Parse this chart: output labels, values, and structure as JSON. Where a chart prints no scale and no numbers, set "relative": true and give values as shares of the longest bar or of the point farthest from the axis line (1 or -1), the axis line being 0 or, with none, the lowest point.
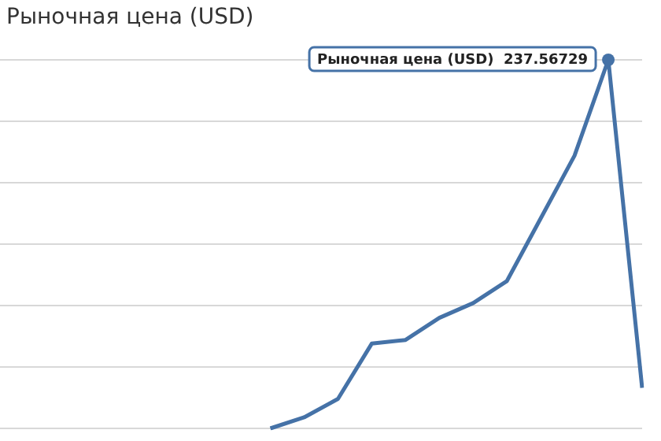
{
  "chart_data": {
    "type": "line",
    "title": "Рыночная цена (USD)",
    "relative": true,
    "grid": "y",
    "legend": false,
    "marker": "none",
    "categories": [
      null,
      null,
      null,
      null,
      null,
      null,
      null,
      null,
      null,
      null,
      null,
      null,
      null,
      null,
      null,
      null,
      null,
      null,
      null,
      null
    ],
    "series": [
      {
        "color": "#4572a7",
        "values": [
          null,
          null,
          null,
          null,
          null,
          null,
          null,
          null,
          0,
          0.03,
          0.08,
          0.23,
          0.24,
          0.3,
          0.34,
          0.4,
          0.57,
          0.74,
          1,
          0.11
        ]
      }
    ],
    "annotations": [
      "Рыночная цена (USD)  237.56729"
    ]
  }
}
